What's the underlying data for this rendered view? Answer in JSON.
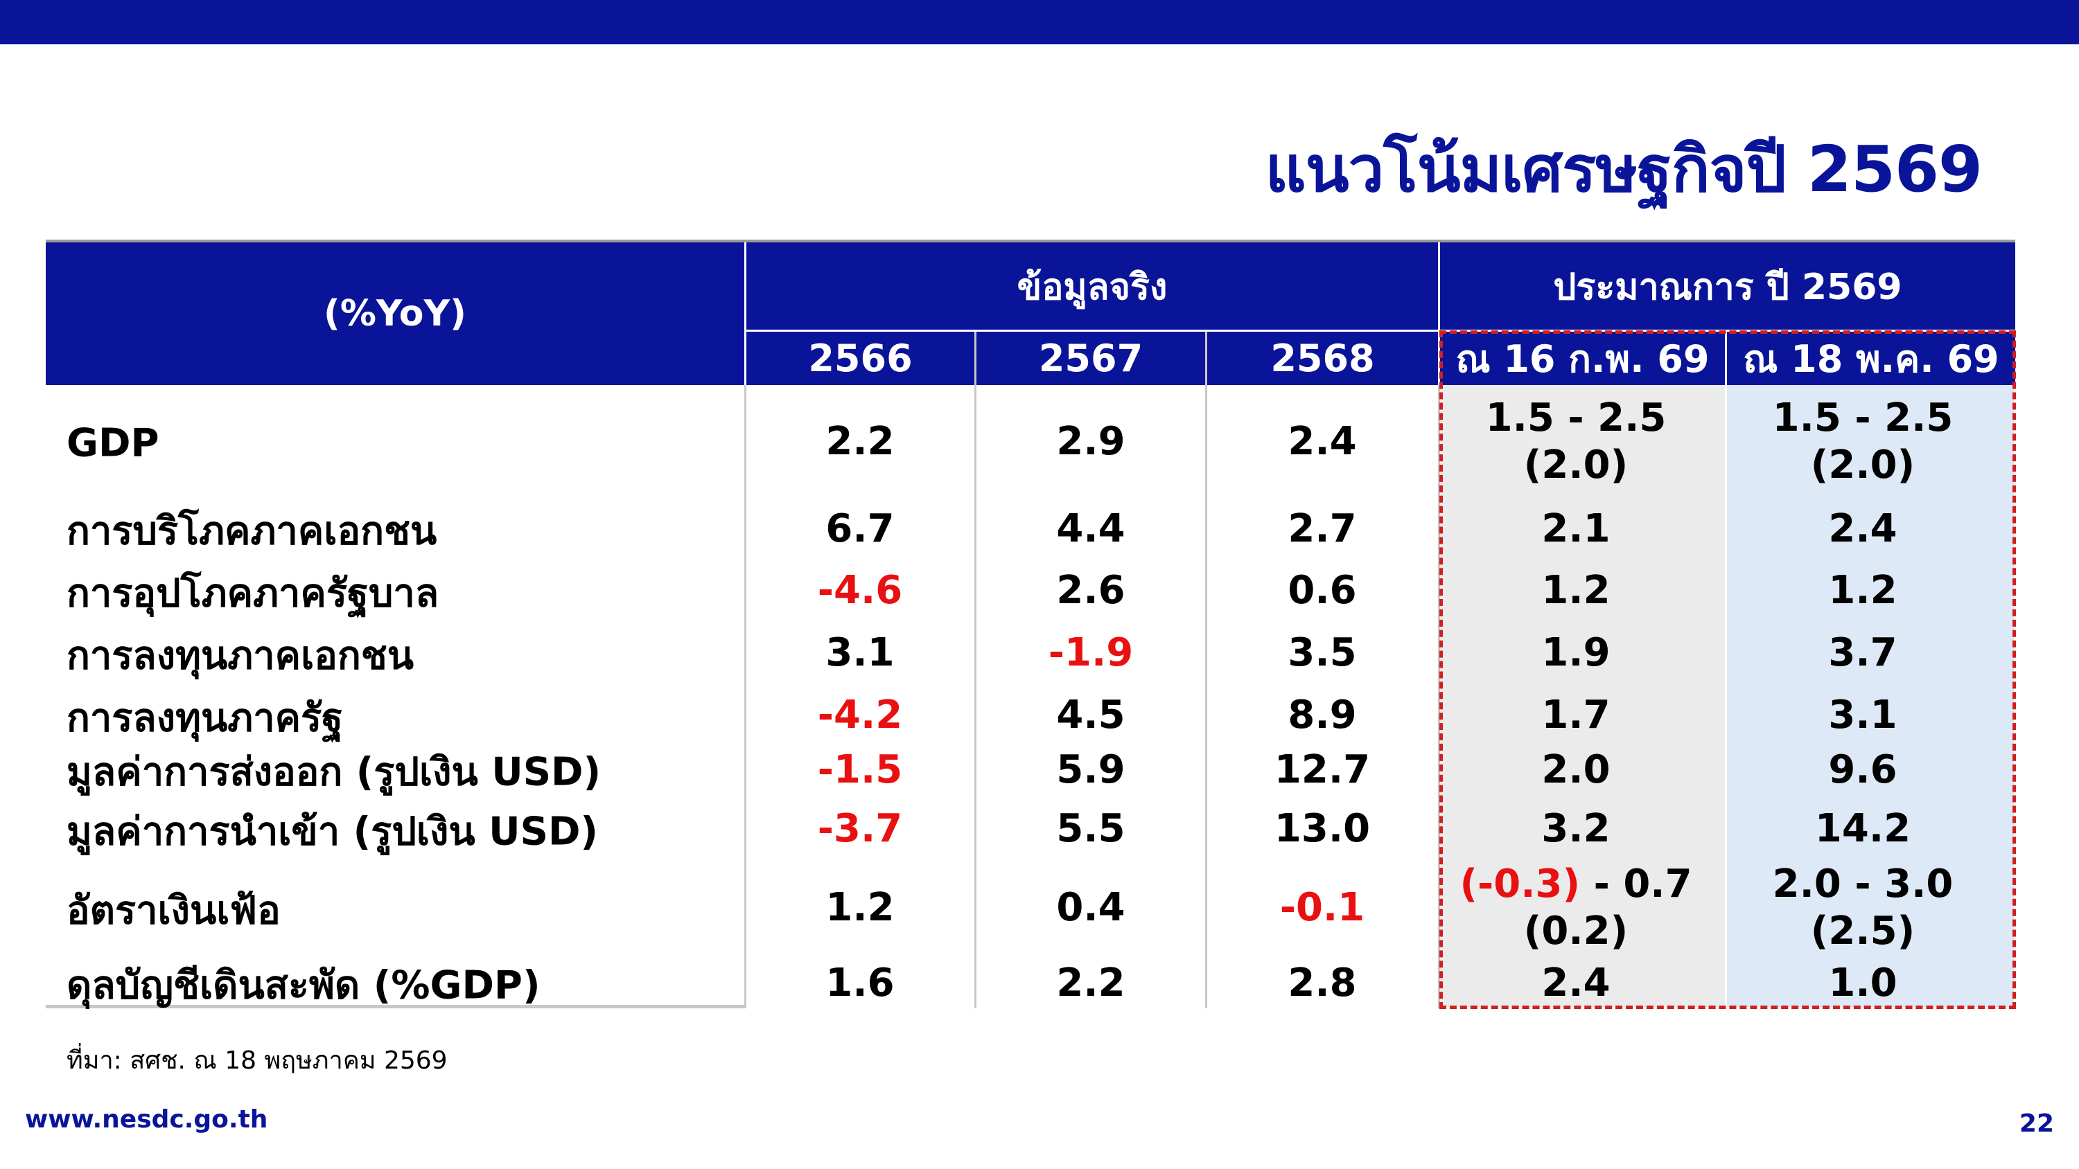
{
  "title": "แนวโน้มเศรษฐกิจปี 2569",
  "table": {
    "corner_label": "(%YoY)",
    "group_actual": "ข้อมูลจริง",
    "group_forecast": "ประมาณการ ปี 2569",
    "columns": [
      "2566",
      "2567",
      "2568",
      "ณ 16 ก.พ. 69",
      "ณ 18 พ.ค. 69"
    ],
    "rows": [
      {
        "label": "GDP",
        "values": [
          "2.2",
          "2.9",
          "2.4"
        ],
        "f1": [
          "1.5 - 2.5",
          "(2.0)"
        ],
        "f2": [
          "1.5 - 2.5",
          "(2.0)"
        ]
      },
      {
        "label": "การบริโภคภาคเอกชน",
        "values": [
          "6.7",
          "4.4",
          "2.7"
        ],
        "f1": [
          "2.1"
        ],
        "f2": [
          "2.4"
        ]
      },
      {
        "label": "การอุปโภคภาครัฐบาล",
        "values": [
          "-4.6",
          "2.6",
          "0.6"
        ],
        "f1": [
          "1.2"
        ],
        "f2": [
          "1.2"
        ]
      },
      {
        "label": "การลงทุนภาคเอกชน",
        "values": [
          "3.1",
          "-1.9",
          "3.5"
        ],
        "f1": [
          "1.9"
        ],
        "f2": [
          "3.7"
        ]
      },
      {
        "label": "การลงทุนภาครัฐ",
        "values": [
          "-4.2",
          "4.5",
          "8.9"
        ],
        "f1": [
          "1.7"
        ],
        "f2": [
          "3.1"
        ]
      },
      {
        "label": "มูลค่าการส่งออก (รูปเงิน USD)",
        "values": [
          "-1.5",
          "5.9",
          "12.7"
        ],
        "f1": [
          "2.0"
        ],
        "f2": [
          "9.6"
        ]
      },
      {
        "label": "มูลค่าการนำเข้า (รูปเงิน USD)",
        "values": [
          "-3.7",
          "5.5",
          "13.0"
        ],
        "f1": [
          "3.2"
        ],
        "f2": [
          "14.2"
        ]
      },
      {
        "label": "อัตราเงินเฟ้อ",
        "values": [
          "1.2",
          "0.4",
          "-0.1"
        ],
        "f1_neg_part": "(-0.3)",
        "f1_rest": " - 0.7",
        "f1": [
          "(0.2)"
        ],
        "f2": [
          "2.0 - 3.0",
          "(2.5)"
        ]
      },
      {
        "label": "ดุลบัญชีเดินสะพัด (%GDP)",
        "values": [
          "1.6",
          "2.2",
          "2.8"
        ],
        "f1": [
          "2.4"
        ],
        "f2": [
          "1.0"
        ]
      }
    ]
  },
  "source": "ที่มา: สศช. ณ 18 พฤษภาคม 2569",
  "footer_url": "www.nesdc.go.th",
  "page_number": "22",
  "colors": {
    "brand_blue": "#0a1499",
    "negative_red": "#e81010",
    "forecast_box": "#d11f1f"
  }
}
